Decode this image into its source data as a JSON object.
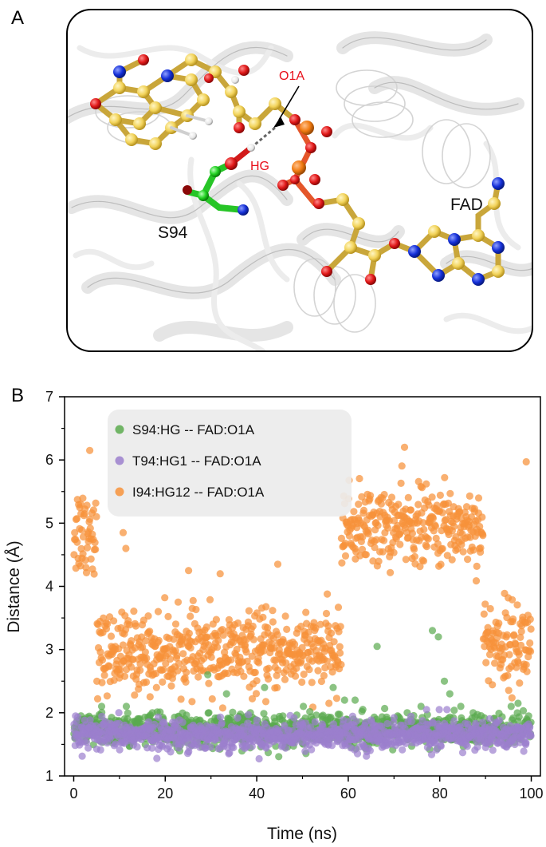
{
  "panels": {
    "a_letter": "A",
    "b_letter": "B"
  },
  "structure": {
    "label_o1a": "O1A",
    "label_hg": "HG",
    "label_s94": "S94",
    "label_fad": "FAD",
    "colors": {
      "carbon_fad": "#f2d35a",
      "carbon_ser": "#20d020",
      "oxygen": "#e01818",
      "nitrogen": "#1530d8",
      "phosphorus": "#f07a10",
      "hydrogen": "#e8e8e8",
      "cartoon": "#d8d8d8"
    }
  },
  "colors": {
    "s94": "#5aaa4e",
    "t94": "#9b7fcd",
    "i94": "#f7923a"
  },
  "chart_data": {
    "type": "scatter",
    "xlabel": "Time (ns)",
    "ylabel": "Distance (Å)",
    "xlim": [
      -2,
      102
    ],
    "ylim": [
      1,
      7
    ],
    "xticks": [
      "0",
      "20",
      "40",
      "60",
      "80",
      "100"
    ],
    "yticks": [
      "1",
      "2",
      "3",
      "4",
      "5",
      "6",
      "7"
    ],
    "grid": false,
    "legend": "top-left",
    "series": [
      {
        "name": "S94:HG -- FAD:O1A",
        "color": "#5aaa4e",
        "points_per_ns": 10,
        "typical_range": [
          1.5,
          1.95
        ],
        "outliers": [
          [
            6.1,
            2.1
          ],
          [
            11.5,
            2.1
          ],
          [
            17.2,
            2.0
          ],
          [
            29.3,
            2.6
          ],
          [
            33.4,
            2.3
          ],
          [
            38.6,
            2.0
          ],
          [
            41.7,
            2.4
          ],
          [
            50.2,
            2.1
          ],
          [
            56.7,
            2.4
          ],
          [
            59.2,
            2.2
          ],
          [
            61.5,
            2.2
          ],
          [
            66.3,
            3.05
          ],
          [
            75.9,
            2.1
          ],
          [
            78.4,
            3.3
          ],
          [
            79.7,
            3.2
          ],
          [
            81.0,
            2.5
          ],
          [
            82.2,
            2.3
          ],
          [
            84.6,
            2.1
          ],
          [
            87.3,
            2.0
          ],
          [
            95.6,
            2.1
          ],
          [
            97.1,
            2.15
          ]
        ]
      },
      {
        "name": "T94:HG1 -- FAD:O1A",
        "color": "#9b7fcd",
        "points_per_ns": 10,
        "typical_range": [
          1.45,
          1.85
        ],
        "outliers": [
          [
            0.4,
            1.95
          ],
          [
            77.1,
            2.05
          ],
          [
            79.9,
            2.05
          ]
        ]
      },
      {
        "name": "I94:HG12 -- FAD:O1A",
        "color": "#f7923a",
        "points_per_ns": 10,
        "segments": [
          {
            "x": [
              0,
              5
            ],
            "center": 4.9,
            "spread": 0.7
          },
          {
            "x": [
              5,
              58.5
            ],
            "center": 2.95,
            "spread": 0.55
          },
          {
            "x": [
              58.5,
              89.5
            ],
            "center": 4.95,
            "spread": 0.55
          },
          {
            "x": [
              89.5,
              100
            ],
            "center": 3.1,
            "spread": 0.6
          }
        ],
        "outliers": [
          [
            3.5,
            6.15
          ],
          [
            72.3,
            6.2
          ],
          [
            98.9,
            5.97
          ],
          [
            1.5,
            5.3
          ],
          [
            10.8,
            4.85
          ],
          [
            11.4,
            4.6
          ],
          [
            25.1,
            4.25
          ],
          [
            32.0,
            4.2
          ],
          [
            44.6,
            4.35
          ],
          [
            14.3,
            2.45
          ]
        ]
      }
    ]
  }
}
